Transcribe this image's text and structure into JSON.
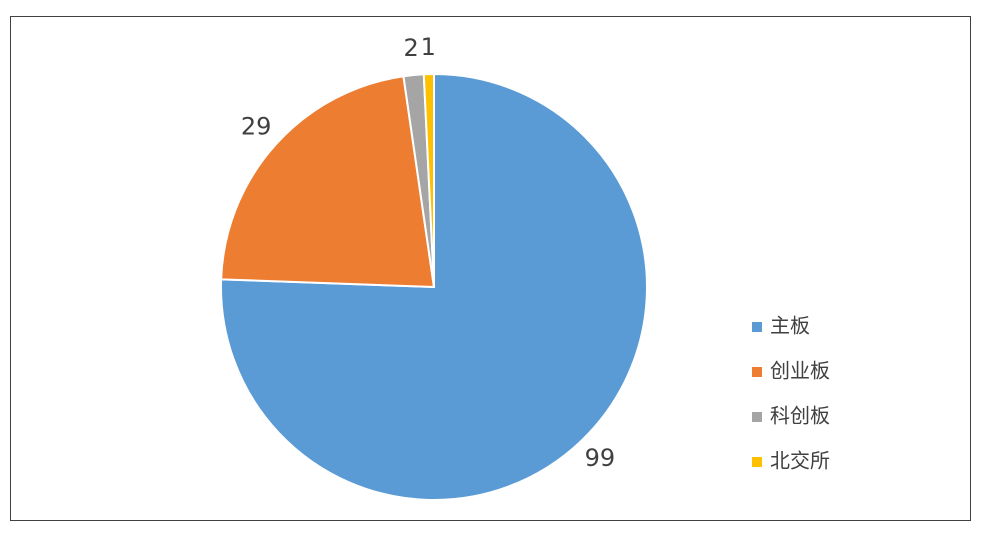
{
  "chart_data": {
    "type": "pie",
    "categories": [
      "主板",
      "创业板",
      "科创板",
      "北交所"
    ],
    "values": [
      99,
      29,
      2,
      1
    ],
    "colors": [
      "#5b9bd5",
      "#ed7d31",
      "#a5a5a5",
      "#ffc000"
    ],
    "legend": "right"
  }
}
